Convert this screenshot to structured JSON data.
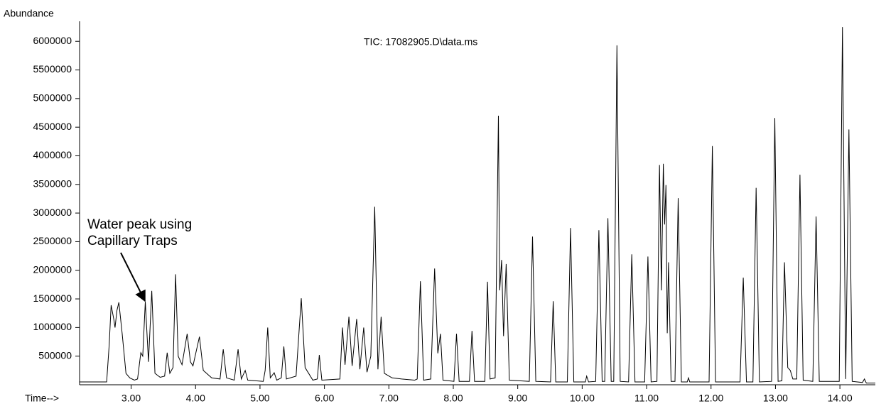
{
  "chart_data": {
    "type": "line",
    "title": "TIC: 17082905.D\\data.ms",
    "y_label": "Abundance",
    "x_label": "Time-->",
    "annotation": [
      "Water peak using",
      "Capillary Traps"
    ],
    "color": "#000000",
    "xlim": [
      2.2,
      14.55
    ],
    "ylim": [
      0,
      6350000
    ],
    "xticks": [
      {
        "value": 3,
        "label": "3.00"
      },
      {
        "value": 4,
        "label": "4.00"
      },
      {
        "value": 5,
        "label": "5.00"
      },
      {
        "value": 6,
        "label": "6.00"
      },
      {
        "value": 7,
        "label": "7.00"
      },
      {
        "value": 8,
        "label": "8.00"
      },
      {
        "value": 9,
        "label": "9.00"
      },
      {
        "value": 10,
        "label": "10.00"
      },
      {
        "value": 11,
        "label": "11.00"
      },
      {
        "value": 12,
        "label": "12.00"
      },
      {
        "value": 13,
        "label": "13.00"
      },
      {
        "value": 14,
        "label": "14.00"
      }
    ],
    "yticks": [
      500000,
      1000000,
      1500000,
      2000000,
      2500000,
      3000000,
      3500000,
      4000000,
      4500000,
      5000000,
      5500000,
      6000000
    ],
    "x": [
      2.2,
      2.62,
      2.66,
      2.69,
      2.73,
      2.75,
      2.78,
      2.81,
      2.86,
      2.92,
      2.98,
      3.05,
      3.1,
      3.15,
      3.18,
      3.22,
      3.27,
      3.32,
      3.37,
      3.45,
      3.52,
      3.56,
      3.6,
      3.65,
      3.69,
      3.73,
      3.79,
      3.87,
      3.92,
      3.96,
      4.06,
      4.12,
      4.25,
      4.38,
      4.43,
      4.48,
      4.6,
      4.66,
      4.71,
      4.77,
      4.81,
      5.05,
      5.08,
      5.12,
      5.16,
      5.22,
      5.26,
      5.33,
      5.37,
      5.41,
      5.56,
      5.64,
      5.7,
      5.82,
      5.89,
      5.92,
      5.96,
      6.24,
      6.28,
      6.32,
      6.38,
      6.43,
      6.5,
      6.55,
      6.61,
      6.66,
      6.72,
      6.78,
      6.83,
      6.88,
      6.93,
      7.05,
      7.2,
      7.4,
      7.44,
      7.49,
      7.54,
      7.65,
      7.71,
      7.76,
      7.8,
      7.84,
      8.01,
      8.05,
      8.09,
      8.25,
      8.29,
      8.33,
      8.49,
      8.53,
      8.57,
      8.65,
      8.7,
      8.72,
      8.75,
      8.78,
      8.82,
      8.87,
      9.18,
      9.23,
      9.28,
      9.51,
      9.55,
      9.59,
      9.77,
      9.82,
      9.87,
      10.05,
      10.07,
      10.1,
      10.21,
      10.26,
      10.31,
      10.35,
      10.4,
      10.45,
      10.49,
      10.54,
      10.59,
      10.72,
      10.77,
      10.82,
      10.97,
      11.02,
      11.07,
      11.16,
      11.2,
      11.23,
      11.26,
      11.28,
      11.3,
      11.32,
      11.34,
      11.38,
      11.44,
      11.49,
      11.54,
      11.63,
      11.65,
      11.67,
      11.97,
      12.02,
      12.07,
      12.45,
      12.5,
      12.55,
      12.65,
      12.7,
      12.75,
      12.94,
      12.99,
      13.04,
      13.1,
      13.14,
      13.19,
      13.23,
      13.27,
      13.33,
      13.38,
      13.43,
      13.58,
      13.63,
      13.68,
      13.99,
      14.04,
      14.09,
      14.14,
      14.19,
      14.35,
      14.38,
      14.41,
      14.55
    ],
    "values": [
      50000,
      50000,
      700000,
      1390000,
      1150000,
      1000000,
      1300000,
      1440000,
      900000,
      200000,
      120000,
      80000,
      100000,
      560000,
      500000,
      1450000,
      400000,
      1640000,
      200000,
      130000,
      150000,
      560000,
      200000,
      300000,
      1930000,
      500000,
      350000,
      890000,
      400000,
      330000,
      840000,
      250000,
      120000,
      100000,
      620000,
      120000,
      80000,
      620000,
      100000,
      250000,
      80000,
      60000,
      250000,
      1000000,
      120000,
      210000,
      80000,
      120000,
      670000,
      100000,
      150000,
      1510000,
      300000,
      80000,
      100000,
      520000,
      80000,
      100000,
      1000000,
      350000,
      1190000,
      330000,
      1150000,
      270000,
      1000000,
      220000,
      500000,
      3110000,
      270000,
      1190000,
      200000,
      120000,
      100000,
      80000,
      100000,
      1810000,
      80000,
      100000,
      2030000,
      550000,
      890000,
      80000,
      60000,
      890000,
      60000,
      60000,
      940000,
      60000,
      60000,
      1800000,
      100000,
      120000,
      4700000,
      1650000,
      2180000,
      850000,
      2110000,
      80000,
      60000,
      2590000,
      60000,
      50000,
      1460000,
      50000,
      50000,
      2740000,
      50000,
      50000,
      150000,
      50000,
      60000,
      2700000,
      60000,
      60000,
      2910000,
      60000,
      60000,
      5930000,
      60000,
      50000,
      2280000,
      50000,
      50000,
      2240000,
      50000,
      60000,
      3840000,
      1650000,
      3860000,
      2800000,
      3490000,
      900000,
      2140000,
      60000,
      60000,
      3260000,
      50000,
      50000,
      120000,
      50000,
      50000,
      4170000,
      50000,
      50000,
      1870000,
      50000,
      50000,
      3440000,
      50000,
      60000,
      4660000,
      60000,
      70000,
      2140000,
      300000,
      250000,
      100000,
      100000,
      3670000,
      80000,
      60000,
      2940000,
      60000,
      60000,
      6250000,
      100000,
      4460000,
      60000,
      40000,
      100000,
      30000,
      30000
    ]
  }
}
